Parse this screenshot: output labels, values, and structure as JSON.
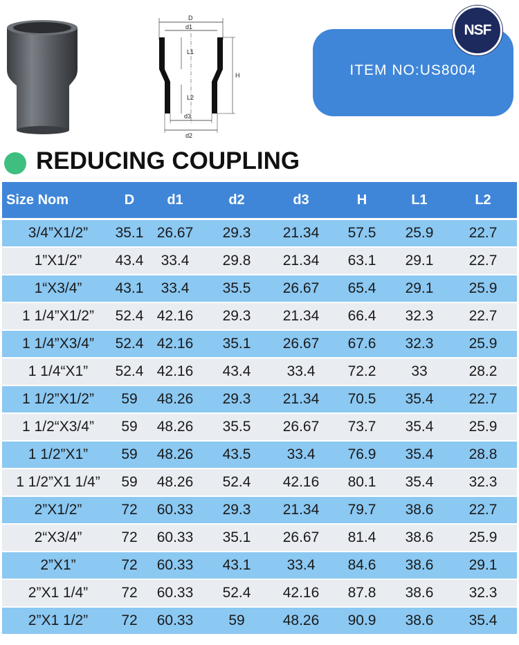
{
  "badge": {
    "text": "NSF"
  },
  "item": {
    "label": "ITEM  NO:US8004"
  },
  "title": "REDUCING COUPLING",
  "drawing": {
    "labels": {
      "D": "D",
      "d1": "d1",
      "L1": "L1",
      "H": "H",
      "L2": "L2",
      "d3": "d3",
      "d2": "d2"
    }
  },
  "table": {
    "headers": [
      "Size Nom",
      "D",
      "d1",
      "d2",
      "d3",
      "H",
      "L1",
      "L2"
    ],
    "rows": [
      [
        "3/4”X1/2”",
        "35.1",
        "26.67",
        "29.3",
        "21.34",
        "57.5",
        "25.9",
        "22.7"
      ],
      [
        "1”X1/2”",
        "43.4",
        "33.4",
        "29.8",
        "21.34",
        "63.1",
        "29.1",
        "22.7"
      ],
      [
        "1“X3/4”",
        "43.1",
        "33.4",
        "35.5",
        "26.67",
        "65.4",
        "29.1",
        "25.9"
      ],
      [
        "1 1/4”X1/2”",
        "52.4",
        "42.16",
        "29.3",
        "21.34",
        "66.4",
        "32.3",
        "22.7"
      ],
      [
        "1 1/4”X3/4”",
        "52.4",
        "42.16",
        "35.1",
        "26.67",
        "67.6",
        "32.3",
        "25.9"
      ],
      [
        "1 1/4“X1”",
        "52.4",
        "42.16",
        "43.4",
        "33.4",
        "72.2",
        "33",
        "28.2"
      ],
      [
        "1 1/2”X1/2”",
        "59",
        "48.26",
        "29.3",
        "21.34",
        "70.5",
        "35.4",
        "22.7"
      ],
      [
        "1 1/2“X3/4”",
        "59",
        "48.26",
        "35.5",
        "26.67",
        "73.7",
        "35.4",
        "25.9"
      ],
      [
        "1 1/2”X1”",
        "59",
        "48.26",
        "43.5",
        "33.4",
        "76.9",
        "35.4",
        "28.8"
      ],
      [
        "1 1/2”X1 1/4”",
        "59",
        "48.26",
        "52.4",
        "42.16",
        "80.1",
        "35.4",
        "32.3"
      ],
      [
        "2”X1/2”",
        "72",
        "60.33",
        "29.3",
        "21.34",
        "79.7",
        "38.6",
        "22.7"
      ],
      [
        "2“X3/4”",
        "72",
        "60.33",
        "35.1",
        "26.67",
        "81.4",
        "38.6",
        "25.9"
      ],
      [
        "2”X1”",
        "72",
        "60.33",
        "43.1",
        "33.4",
        "84.6",
        "38.6",
        "29.1"
      ],
      [
        "2”X1 1/4”",
        "72",
        "60.33",
        "52.4",
        "42.16",
        "87.8",
        "38.6",
        "32.3"
      ],
      [
        "2”X1 1/2”",
        "72",
        "60.33",
        "59",
        "48.26",
        "90.9",
        "38.6",
        "35.4"
      ]
    ]
  },
  "colors": {
    "accent_blue": "#3f86d8",
    "row_blue": "#8bc8f2",
    "row_gray": "#e9ecf0",
    "title_dot": "#3fbf7f",
    "badge_navy": "#1d2a5e"
  }
}
